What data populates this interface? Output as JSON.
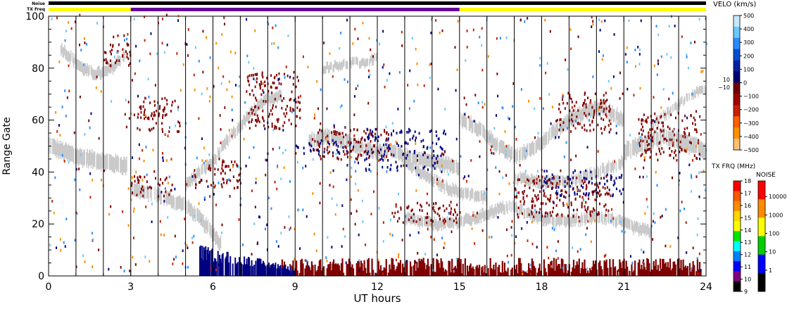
{
  "chart_data": {
    "type": "heatmap",
    "xlabel": "UT hours",
    "ylabel": "Range Gate",
    "xlim": [
      0,
      24
    ],
    "ylim": [
      0,
      100
    ],
    "x_ticks": [
      "0",
      "3",
      "6",
      "9",
      "12",
      "15",
      "18",
      "21",
      "24"
    ],
    "y_ticks": [
      "0",
      "20",
      "40",
      "60",
      "80",
      "100"
    ],
    "x_tick_values": [
      0,
      3,
      6,
      9,
      12,
      15,
      18,
      21,
      24
    ],
    "y_tick_values": [
      0,
      20,
      40,
      60,
      80,
      100
    ],
    "top_bar_labels": {
      "noise": "Noise",
      "txfreq": "TX Freq"
    },
    "noise_bar": [
      {
        "start": 0,
        "end": 24,
        "color": "#000000"
      }
    ],
    "txfreq_bar": [
      {
        "start": 0,
        "end": 3,
        "color": "#ffff00"
      },
      {
        "start": 3,
        "end": 15,
        "color": "#660099"
      },
      {
        "start": 15,
        "end": 24,
        "color": "#ffff00"
      }
    ],
    "scan_boundaries": [
      1,
      2,
      3,
      4,
      5,
      6,
      7,
      8,
      9,
      10,
      11,
      12,
      13,
      14,
      15,
      16,
      17,
      18,
      19,
      20,
      21,
      22,
      23
    ],
    "colors": {
      "ground_scatter": "#c8c8c8",
      "negative_velocity": "#800000",
      "positive_velocity": "#000080"
    },
    "ground_scatter_bands": [
      {
        "name": "gs-early",
        "x": [
          0,
          0.5,
          1,
          1.5,
          2,
          2.5,
          2.9
        ],
        "center": [
          50,
          48,
          46,
          45,
          44,
          43,
          42
        ],
        "width": 6
      },
      {
        "name": "gs-morning",
        "x": [
          3,
          3.5,
          4,
          4.5,
          5,
          5.5,
          6,
          6.3
        ],
        "center": [
          34,
          32,
          31,
          29,
          27,
          22,
          16,
          12
        ],
        "width": 5
      },
      {
        "name": "gs-top-left",
        "x": [
          0.4,
          0.8,
          1.2,
          1.6,
          2,
          2.4,
          2.8
        ],
        "center": [
          88,
          84,
          80,
          78,
          78,
          81,
          86
        ],
        "width": 4
      },
      {
        "name": "gs-rise",
        "x": [
          5,
          5.5,
          6,
          6.5,
          7,
          7.5,
          8,
          8.5
        ],
        "center": [
          35,
          40,
          44,
          52,
          58,
          64,
          68,
          70
        ],
        "width": 4
      },
      {
        "name": "gs-mid",
        "x": [
          9.5,
          10,
          10.5,
          11,
          11.5,
          12,
          12.5,
          13,
          13.5,
          14,
          14.5,
          15
        ],
        "center": [
          52,
          54,
          53,
          51,
          49,
          48,
          48,
          46,
          45,
          44,
          43,
          42
        ],
        "width": 5
      },
      {
        "name": "gs-mid-low",
        "x": [
          13,
          13.5,
          14,
          14.5,
          15,
          15.5,
          16
        ],
        "center": [
          44,
          40,
          37,
          34,
          32,
          31,
          30
        ],
        "width": 4
      },
      {
        "name": "gs-upper",
        "x": [
          10,
          10.5,
          11,
          11.5,
          12
        ],
        "center": [
          80,
          81,
          82,
          82,
          84
        ],
        "width": 3
      },
      {
        "name": "gs-low-band",
        "x": [
          13,
          13.5,
          14,
          14.5,
          15,
          15.5,
          16,
          16.5,
          17
        ],
        "center": [
          22,
          21,
          20,
          20,
          21,
          22,
          24,
          26,
          27
        ],
        "width": 4
      },
      {
        "name": "gs-right-main",
        "x": [
          15,
          15.5,
          16,
          16.5,
          17,
          17.5,
          18,
          18.5,
          19,
          19.5,
          20,
          20.5,
          21
        ],
        "center": [
          60,
          58,
          54,
          49,
          46,
          48,
          52,
          56,
          60,
          63,
          65,
          63,
          60
        ],
        "width": 5
      },
      {
        "name": "gs-right-mid",
        "x": [
          17,
          17.5,
          18,
          18.5,
          19,
          19.5,
          20,
          20.5,
          21
        ],
        "center": [
          38,
          37,
          36,
          36,
          37,
          38,
          40,
          42,
          44
        ],
        "width": 4
      },
      {
        "name": "gs-right-low",
        "x": [
          17,
          17.5,
          18,
          18.5,
          19,
          19.5,
          20,
          20.5,
          21,
          21.5,
          22
        ],
        "center": [
          26,
          24,
          22,
          21,
          21,
          22,
          23,
          22,
          20,
          18,
          17
        ],
        "width": 4
      },
      {
        "name": "gs-far-right",
        "x": [
          21,
          21.5,
          22,
          22.5,
          23,
          23.5,
          24
        ],
        "center": [
          48,
          50,
          52,
          54,
          52,
          50,
          48
        ],
        "width": 6
      },
      {
        "name": "gs-far-right-top",
        "x": [
          22,
          22.5,
          23,
          23.5,
          24
        ],
        "center": [
          58,
          62,
          66,
          70,
          72
        ],
        "width": 3
      }
    ],
    "velocity_negative_clusters": [
      {
        "x": [
          3.2,
          4.8
        ],
        "gate": [
          55,
          68
        ]
      },
      {
        "x": [
          7.2,
          9.2
        ],
        "gate": [
          56,
          78
        ]
      },
      {
        "x": [
          9.6,
          12.5
        ],
        "gate": [
          44,
          56
        ]
      },
      {
        "x": [
          18.5,
          20.5
        ],
        "gate": [
          55,
          70
        ]
      },
      {
        "x": [
          21.5,
          23.8
        ],
        "gate": [
          44,
          62
        ]
      },
      {
        "x": [
          5.3,
          7
        ],
        "gate": [
          33,
          44
        ]
      },
      {
        "x": [
          3,
          4.5
        ],
        "gate": [
          30,
          38
        ]
      },
      {
        "x": [
          2,
          3
        ],
        "gate": [
          80,
          92
        ]
      },
      {
        "x": [
          17,
          20.5
        ],
        "gate": [
          22,
          38
        ]
      },
      {
        "x": [
          12.5,
          15
        ],
        "gate": [
          20,
          28
        ]
      }
    ],
    "velocity_positive_clusters": [
      {
        "x": [
          11.5,
          14.5
        ],
        "gate": [
          40,
          56
        ]
      },
      {
        "x": [
          18,
          21
        ],
        "gate": [
          30,
          40
        ]
      },
      {
        "x": [
          9,
          11
        ],
        "gate": [
          46,
          52
        ]
      }
    ],
    "near_range_negative": {
      "x": [
        8.5,
        23.8
      ],
      "gate": [
        0,
        6
      ]
    },
    "near_range_positive": {
      "x": [
        5.5,
        9
      ],
      "gate": [
        0,
        12
      ]
    },
    "velo_scale": {
      "title": "VELO (km/s)",
      "ticks": [
        "500",
        "400",
        "300",
        "200",
        "100",
        "0",
        "−100",
        "−200",
        "−300",
        "−400",
        "−500"
      ],
      "extra_labels": [
        "10",
        "−10"
      ],
      "colors": [
        "#c8e8ff",
        "#6cc8ff",
        "#2a8cff",
        "#0050d0",
        "#0020a0",
        "#000070",
        "#700000",
        "#a00000",
        "#c82000",
        "#ff6000",
        "#ff9000",
        "#ffc070"
      ]
    },
    "txfrq_scale": {
      "title": "TX FRQ (MHz)",
      "ticks": [
        "18",
        "17",
        "16",
        "15",
        "14",
        "13",
        "12",
        "11",
        "10",
        "9"
      ],
      "colors": [
        "#ff0000",
        "#ff5500",
        "#ff8c00",
        "#ffd700",
        "#ffff00",
        "#00e600",
        "#00ffff",
        "#0080ff",
        "#0000ff",
        "#800080",
        "#000000"
      ]
    },
    "noise_scale": {
      "title": "NOISE",
      "ticks": [
        "10000",
        "1000",
        "100",
        "10",
        "1"
      ],
      "colors": [
        "#ff0000",
        "#ff8c00",
        "#ffff00",
        "#00d000",
        "#0000ff",
        "#000000"
      ]
    }
  }
}
